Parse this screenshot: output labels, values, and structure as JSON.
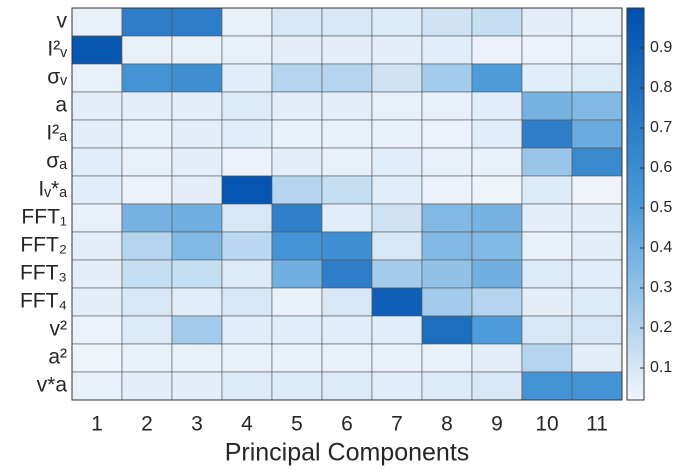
{
  "chart_data": {
    "type": "heatmap",
    "xlabel": "Principal Components",
    "categories": [
      "1",
      "2",
      "3",
      "4",
      "5",
      "6",
      "7",
      "8",
      "9",
      "10",
      "11"
    ],
    "rows": [
      "v",
      "I²ᵥ",
      "σᵥ",
      "a",
      "I²ₐ",
      "σₐ",
      "Iᵥ*ₐ",
      "FFT₁",
      "FFT₂",
      "FFT₃",
      "FFT₄",
      "v²",
      "a²",
      "v*a"
    ],
    "values": [
      [
        0.05,
        0.7,
        0.7,
        0.05,
        0.1,
        0.1,
        0.08,
        0.12,
        0.15,
        0.06,
        0.05
      ],
      [
        0.95,
        0.05,
        0.05,
        0.05,
        0.06,
        0.06,
        0.06,
        0.07,
        0.04,
        0.04,
        0.05
      ],
      [
        0.05,
        0.55,
        0.58,
        0.07,
        0.2,
        0.2,
        0.12,
        0.25,
        0.5,
        0.07,
        0.08
      ],
      [
        0.06,
        0.06,
        0.06,
        0.08,
        0.06,
        0.06,
        0.05,
        0.05,
        0.07,
        0.38,
        0.35
      ],
      [
        0.06,
        0.05,
        0.06,
        0.07,
        0.05,
        0.05,
        0.05,
        0.04,
        0.07,
        0.7,
        0.42
      ],
      [
        0.07,
        0.05,
        0.06,
        0.04,
        0.06,
        0.05,
        0.07,
        0.05,
        0.05,
        0.28,
        0.62
      ],
      [
        0.07,
        0.04,
        0.06,
        0.97,
        0.2,
        0.15,
        0.07,
        0.04,
        0.03,
        0.08,
        0.03
      ],
      [
        0.05,
        0.38,
        0.4,
        0.1,
        0.68,
        0.07,
        0.12,
        0.35,
        0.38,
        0.06,
        0.06
      ],
      [
        0.06,
        0.2,
        0.35,
        0.18,
        0.55,
        0.58,
        0.1,
        0.35,
        0.35,
        0.05,
        0.06
      ],
      [
        0.06,
        0.15,
        0.15,
        0.08,
        0.4,
        0.7,
        0.25,
        0.3,
        0.4,
        0.08,
        0.07
      ],
      [
        0.06,
        0.1,
        0.07,
        0.1,
        0.05,
        0.1,
        0.9,
        0.25,
        0.2,
        0.06,
        0.08
      ],
      [
        0.04,
        0.08,
        0.25,
        0.07,
        0.07,
        0.07,
        0.07,
        0.8,
        0.5,
        0.1,
        0.1
      ],
      [
        0.03,
        0.05,
        0.05,
        0.05,
        0.05,
        0.05,
        0.05,
        0.05,
        0.06,
        0.2,
        0.06
      ],
      [
        0.05,
        0.06,
        0.06,
        0.08,
        0.08,
        0.08,
        0.07,
        0.08,
        0.1,
        0.55,
        0.55
      ]
    ],
    "colormap": [
      "#f2f6fc",
      "#4a9ad8",
      "#0050ae"
    ],
    "clim": [
      0.02,
      1.0
    ],
    "cticks": [
      0.1,
      0.2,
      0.3,
      0.4,
      0.5,
      0.6,
      0.7,
      0.8,
      0.9
    ]
  }
}
